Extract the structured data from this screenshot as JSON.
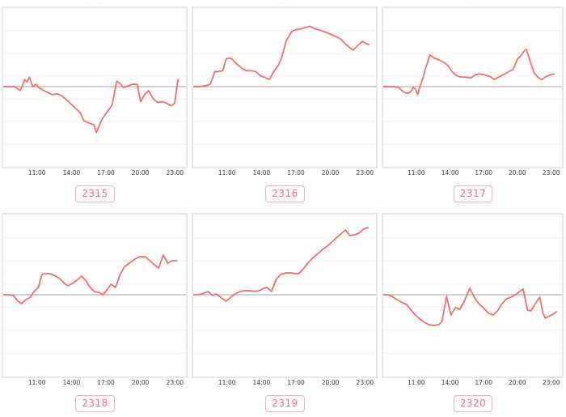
{
  "page": {
    "background": "#ffffff"
  },
  "decor": {
    "cropped_title": "··· ··"
  },
  "colors": {
    "line": "#f26a6a",
    "zero_line": "#b4b4b4",
    "gridline": "#f0f0f0",
    "box_border": "#e7e7e7",
    "badge_border": "#f5a9c4",
    "badge_text": "#ed6d92",
    "axis_text": "#3a3a3a"
  },
  "axis": {
    "tick_labels": [
      "11:00",
      "14:00",
      "17:00",
      "20:00",
      "23:00"
    ],
    "tick_hours": [
      11,
      14,
      17,
      20,
      23
    ],
    "x_range_hours": [
      8,
      24.1
    ],
    "grid": "horizontal-only",
    "y_units": "relative change vs baseline (% of panel height); no y-axis labels shown",
    "ylim": [
      -50,
      50
    ],
    "baseline_value": 0
  },
  "chart_data": [
    {
      "type": "line",
      "label": "2315",
      "points": [
        [
          8,
          0
        ],
        [
          8.5,
          0
        ],
        [
          9,
          0
        ],
        [
          9.3,
          -1.5
        ],
        [
          9.5,
          -2.5
        ],
        [
          9.9,
          4.5
        ],
        [
          10.1,
          3
        ],
        [
          10.3,
          6
        ],
        [
          10.6,
          0
        ],
        [
          10.9,
          1.5
        ],
        [
          11.1,
          -0.5
        ],
        [
          11.6,
          -2.5
        ],
        [
          12,
          -4
        ],
        [
          12.3,
          -5
        ],
        [
          12.8,
          -4.5
        ],
        [
          13.2,
          -6
        ],
        [
          13.7,
          -9
        ],
        [
          14.2,
          -12.5
        ],
        [
          14.8,
          -16.5
        ],
        [
          15.1,
          -21.5
        ],
        [
          15.6,
          -23
        ],
        [
          16,
          -24
        ],
        [
          16.2,
          -29
        ],
        [
          16.7,
          -20.5
        ],
        [
          17.1,
          -16.5
        ],
        [
          17.6,
          -11.5
        ],
        [
          18,
          3.5
        ],
        [
          18.3,
          2
        ],
        [
          18.6,
          -0.5
        ],
        [
          19,
          0.5
        ],
        [
          19.4,
          1.5
        ],
        [
          19.8,
          1.5
        ],
        [
          20.1,
          -9.5
        ],
        [
          20.5,
          -4.5
        ],
        [
          20.8,
          -2.5
        ],
        [
          21.2,
          -7.5
        ],
        [
          21.6,
          -10
        ],
        [
          22.1,
          -9.5
        ],
        [
          22.4,
          -10.5
        ],
        [
          22.8,
          -12
        ],
        [
          23.1,
          -10.5
        ],
        [
          23.4,
          4.5
        ]
      ]
    },
    {
      "type": "line",
      "label": "2316",
      "points": [
        [
          8,
          0
        ],
        [
          8.5,
          0
        ],
        [
          9,
          0.5
        ],
        [
          9.3,
          1
        ],
        [
          9.5,
          1.5
        ],
        [
          9.9,
          9.5
        ],
        [
          10.2,
          9.5
        ],
        [
          10.6,
          10
        ],
        [
          10.9,
          17.5
        ],
        [
          11.2,
          18
        ],
        [
          11.4,
          17.5
        ],
        [
          11.8,
          14.5
        ],
        [
          12.3,
          11.5
        ],
        [
          12.7,
          10
        ],
        [
          13.1,
          10
        ],
        [
          13.5,
          9.5
        ],
        [
          13.9,
          7
        ],
        [
          14.4,
          5.5
        ],
        [
          14.7,
          4.5
        ],
        [
          15.1,
          9.5
        ],
        [
          15.5,
          13.5
        ],
        [
          15.8,
          18.5
        ],
        [
          16.2,
          29
        ],
        [
          16.7,
          35
        ],
        [
          17.1,
          36
        ],
        [
          17.5,
          36.5
        ],
        [
          18,
          37.5
        ],
        [
          18.3,
          38
        ],
        [
          18.7,
          36.5
        ],
        [
          19.2,
          35.5
        ],
        [
          19.6,
          34.5
        ],
        [
          20.1,
          33
        ],
        [
          20.6,
          31.5
        ],
        [
          21,
          30
        ],
        [
          21.4,
          27
        ],
        [
          21.8,
          24.5
        ],
        [
          22.1,
          23
        ],
        [
          22.5,
          26
        ],
        [
          22.9,
          28.5
        ],
        [
          23.3,
          27
        ],
        [
          23.5,
          26.5
        ]
      ]
    },
    {
      "type": "line",
      "label": "2317",
      "points": [
        [
          8,
          0
        ],
        [
          8.5,
          0
        ],
        [
          9,
          0
        ],
        [
          9.4,
          -0.5
        ],
        [
          9.7,
          -2.5
        ],
        [
          10,
          -4
        ],
        [
          10.3,
          -4
        ],
        [
          10.5,
          -3
        ],
        [
          10.7,
          -0.5
        ],
        [
          10.9,
          -1.5
        ],
        [
          11.1,
          -5
        ],
        [
          11.3,
          0
        ],
        [
          11.6,
          6
        ],
        [
          11.9,
          13.5
        ],
        [
          12.2,
          20
        ],
        [
          12.6,
          18
        ],
        [
          13,
          17
        ],
        [
          13.4,
          15.5
        ],
        [
          13.8,
          13.5
        ],
        [
          14.2,
          9.5
        ],
        [
          14.6,
          7
        ],
        [
          15,
          6
        ],
        [
          15.4,
          6
        ],
        [
          15.9,
          5.5
        ],
        [
          16.3,
          7.5
        ],
        [
          16.7,
          8
        ],
        [
          17.1,
          7.5
        ],
        [
          17.6,
          6.5
        ],
        [
          18,
          4.5
        ],
        [
          18.4,
          6
        ],
        [
          18.8,
          7.5
        ],
        [
          19.2,
          9
        ],
        [
          19.7,
          11
        ],
        [
          20.1,
          17.5
        ],
        [
          20.4,
          19.5
        ],
        [
          20.7,
          22.5
        ],
        [
          20.9,
          23.5
        ],
        [
          21.3,
          14.5
        ],
        [
          21.6,
          8.5
        ],
        [
          22,
          5.5
        ],
        [
          22.3,
          4.5
        ],
        [
          22.7,
          6.5
        ],
        [
          23.1,
          7.5
        ],
        [
          23.4,
          8
        ]
      ]
    },
    {
      "type": "line",
      "label": "2318",
      "points": [
        [
          8,
          0
        ],
        [
          8.4,
          0
        ],
        [
          8.9,
          -0.5
        ],
        [
          9.3,
          -4
        ],
        [
          9.6,
          -5.5
        ],
        [
          10,
          -3
        ],
        [
          10.4,
          -1.5
        ],
        [
          10.7,
          2
        ],
        [
          11.1,
          4.5
        ],
        [
          11.4,
          12.5
        ],
        [
          11.7,
          13
        ],
        [
          12.1,
          13
        ],
        [
          12.6,
          11.5
        ],
        [
          13,
          10
        ],
        [
          13.4,
          7
        ],
        [
          13.7,
          5.5
        ],
        [
          14.1,
          7
        ],
        [
          14.5,
          9
        ],
        [
          14.9,
          11.5
        ],
        [
          15.3,
          8.5
        ],
        [
          15.6,
          5
        ],
        [
          16,
          2
        ],
        [
          16.4,
          1.5
        ],
        [
          16.8,
          0
        ],
        [
          17.2,
          3.5
        ],
        [
          17.5,
          6.5
        ],
        [
          17.9,
          4.5
        ],
        [
          18.3,
          12.5
        ],
        [
          18.7,
          17.5
        ],
        [
          19.2,
          20
        ],
        [
          19.6,
          22
        ],
        [
          20,
          23.5
        ],
        [
          20.5,
          23.5
        ],
        [
          21,
          20.5
        ],
        [
          21.4,
          18
        ],
        [
          21.7,
          16.5
        ],
        [
          22.1,
          24.5
        ],
        [
          22.5,
          19.5
        ],
        [
          22.9,
          21
        ],
        [
          23.3,
          21
        ]
      ]
    },
    {
      "type": "line",
      "label": "2319",
      "points": [
        [
          8,
          0
        ],
        [
          8.4,
          0
        ],
        [
          8.8,
          0.5
        ],
        [
          9.3,
          2
        ],
        [
          9.7,
          -0.5
        ],
        [
          10,
          0.5
        ],
        [
          10.2,
          -0.5
        ],
        [
          10.6,
          -2.5
        ],
        [
          10.9,
          -4
        ],
        [
          11.3,
          -1.5
        ],
        [
          11.7,
          0.5
        ],
        [
          12.1,
          2
        ],
        [
          12.6,
          2.5
        ],
        [
          13,
          2.5
        ],
        [
          13.4,
          2
        ],
        [
          13.8,
          2.5
        ],
        [
          14.2,
          4
        ],
        [
          14.5,
          4.5
        ],
        [
          14.9,
          2
        ],
        [
          15.3,
          9.5
        ],
        [
          15.7,
          12.5
        ],
        [
          16.2,
          13.5
        ],
        [
          16.6,
          13.5
        ],
        [
          17,
          13
        ],
        [
          17.3,
          13
        ],
        [
          17.7,
          16
        ],
        [
          18.1,
          19.5
        ],
        [
          18.5,
          22.5
        ],
        [
          19,
          25.5
        ],
        [
          19.4,
          28
        ],
        [
          19.8,
          30
        ],
        [
          20.2,
          32.5
        ],
        [
          20.6,
          35
        ],
        [
          21,
          37.5
        ],
        [
          21.4,
          40
        ],
        [
          21.8,
          36.5
        ],
        [
          22.2,
          37
        ],
        [
          22.6,
          38
        ],
        [
          23,
          40.5
        ],
        [
          23.4,
          41.5
        ]
      ]
    },
    {
      "type": "line",
      "label": "2320",
      "points": [
        [
          8,
          0
        ],
        [
          8.4,
          0
        ],
        [
          8.8,
          -1
        ],
        [
          9.2,
          -3
        ],
        [
          9.6,
          -4.5
        ],
        [
          10.1,
          -6
        ],
        [
          10.5,
          -9.5
        ],
        [
          10.9,
          -12.5
        ],
        [
          11.3,
          -15
        ],
        [
          11.7,
          -17
        ],
        [
          12.1,
          -18.5
        ],
        [
          12.6,
          -19
        ],
        [
          13,
          -18.5
        ],
        [
          13.3,
          -16.5
        ],
        [
          13.7,
          -1
        ],
        [
          14.1,
          -12.5
        ],
        [
          14.5,
          -8
        ],
        [
          14.9,
          -9
        ],
        [
          15.3,
          -4
        ],
        [
          15.8,
          4
        ],
        [
          16.2,
          -1.5
        ],
        [
          16.6,
          -5.5
        ],
        [
          17,
          -8
        ],
        [
          17.5,
          -11.5
        ],
        [
          17.9,
          -12.5
        ],
        [
          18.3,
          -10
        ],
        [
          18.7,
          -5.5
        ],
        [
          19.1,
          -2.5
        ],
        [
          19.5,
          -1.5
        ],
        [
          19.9,
          0
        ],
        [
          20.3,
          2
        ],
        [
          20.6,
          3.5
        ],
        [
          21,
          -9.5
        ],
        [
          21.3,
          -10
        ],
        [
          21.7,
          -5.5
        ],
        [
          22.1,
          -1.5
        ],
        [
          22.4,
          -11.5
        ],
        [
          22.6,
          -14.5
        ],
        [
          23,
          -13
        ],
        [
          23.3,
          -12
        ],
        [
          23.6,
          -10.5
        ]
      ]
    }
  ]
}
